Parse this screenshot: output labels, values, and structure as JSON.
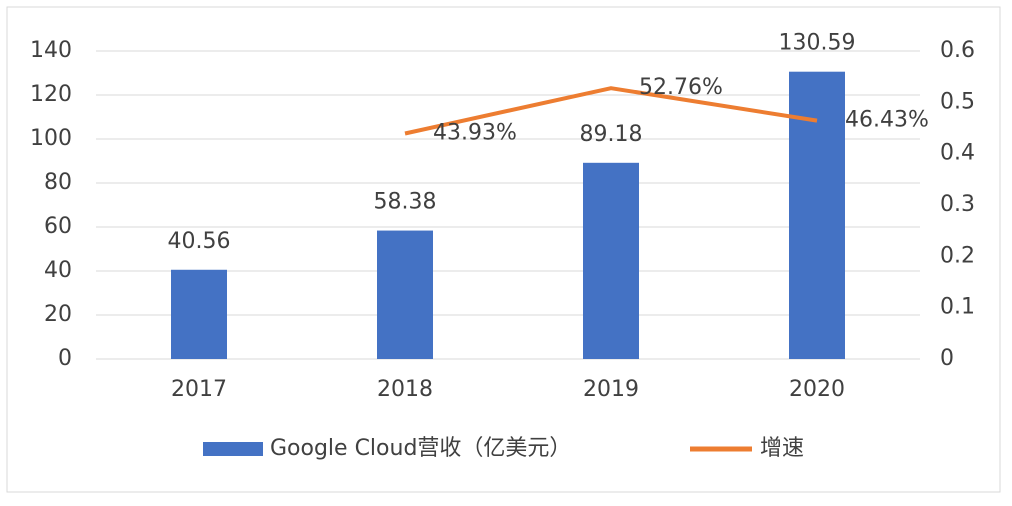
{
  "chart_data": {
    "type": "bar-line",
    "categories": [
      "2017",
      "2018",
      "2019",
      "2020"
    ],
    "series": [
      {
        "name": "Google Cloud营收（亿美元）",
        "type": "bar",
        "color": "#4472c4",
        "values": [
          40.56,
          58.38,
          89.18,
          130.59
        ]
      },
      {
        "name": "增速",
        "type": "line",
        "axis": "y2",
        "color": "#ed7d31",
        "values": [
          null,
          0.4393,
          0.5276,
          0.4643
        ],
        "value_labels": [
          null,
          "43.93%",
          "52.76%",
          "46.43%"
        ]
      }
    ],
    "ylim": [
      0,
      140
    ],
    "yticks": [
      0,
      20,
      40,
      60,
      80,
      100,
      120,
      140
    ],
    "y2lim": [
      0,
      0.6
    ],
    "y2ticks": [
      0,
      0.1,
      0.2,
      0.3,
      0.4,
      0.5,
      0.6
    ],
    "grid": true,
    "legend": "bottom"
  }
}
